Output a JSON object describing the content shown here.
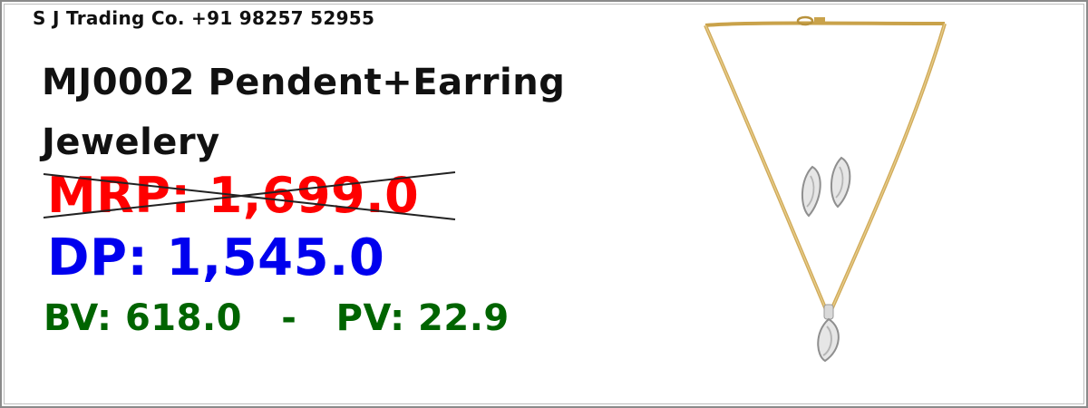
{
  "seller": {
    "text": "S J Trading Co. +91 98257 52955"
  },
  "product": {
    "title": "MJ0002 Pendent+Earring Jewelery",
    "image_icon": "necklace-earrings-image"
  },
  "pricing": {
    "mrp": "MRP: 1,699.0",
    "dp": "DP: 1,545.0",
    "bv": "BV: 618.0",
    "separator": "-",
    "pv": "PV: 22.9"
  },
  "colors": {
    "mrp": "#ff0000",
    "dp": "#0000ee",
    "bvpv": "#006400"
  }
}
